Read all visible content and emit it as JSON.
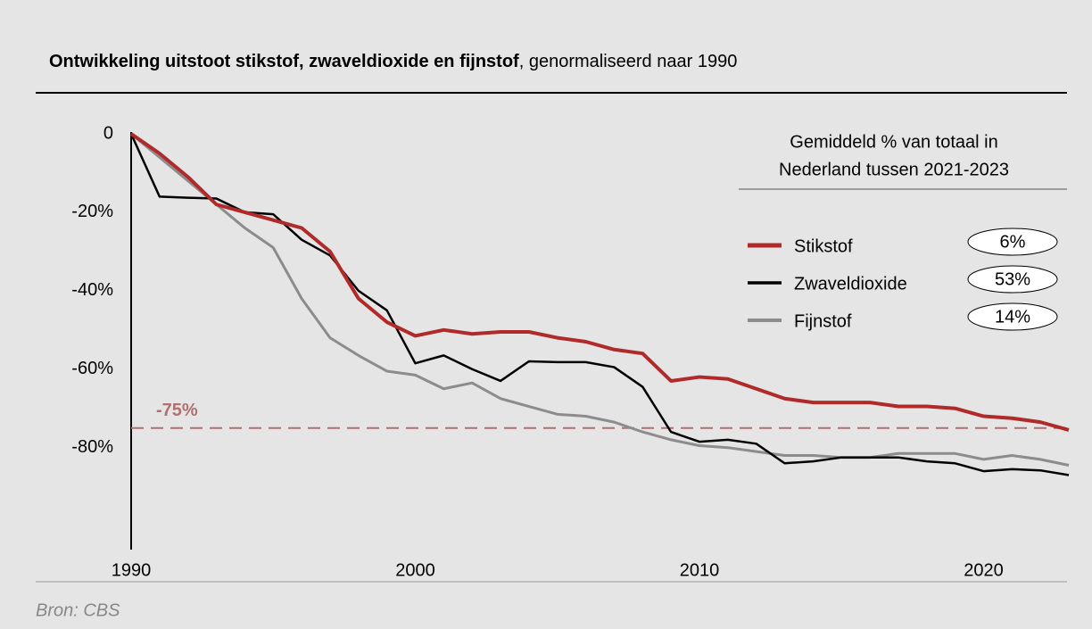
{
  "chart_data": {
    "type": "line",
    "title": "Ontwikkeling uitstoot stikstof, zwaveldioxide en fijnstof",
    "subtitle": ", genormaliseerd naar 1990",
    "source": "Bron: CBS",
    "legend_title": [
      "Gemiddeld % van totaal in",
      "Nederland tussen 2021-2023"
    ],
    "x": [
      1990,
      1991,
      1992,
      1993,
      1994,
      1995,
      1996,
      1997,
      1998,
      1999,
      2000,
      2001,
      2002,
      2003,
      2004,
      2005,
      2006,
      2007,
      2008,
      2009,
      2010,
      2011,
      2012,
      2013,
      2014,
      2015,
      2016,
      2017,
      2018,
      2019,
      2020,
      2021,
      2022,
      2023
    ],
    "series": [
      {
        "name": "Stikstof",
        "color": "#b02a2a",
        "width": 4,
        "share": "6%",
        "values": [
          0,
          -5,
          -11,
          -18,
          -20,
          -22,
          -24,
          -30,
          -42,
          -48,
          -51.5,
          -50,
          -51,
          -50.5,
          -50.5,
          -52,
          -53,
          -55,
          -56,
          -63,
          -62,
          -62.5,
          -65,
          -67.5,
          -68.5,
          -68.5,
          -68.5,
          -69.5,
          -69.5,
          -70,
          -72,
          -72.5,
          -73.5,
          -75.5
        ]
      },
      {
        "name": "Zwaveldioxide",
        "color": "#000000",
        "width": 2.5,
        "share": "53%",
        "values": [
          0,
          -16,
          -16.3,
          -16.5,
          -20,
          -20.5,
          -27,
          -31,
          -40,
          -45,
          -58.5,
          -56.5,
          -60,
          -63,
          -58,
          -58.2,
          -58.2,
          -59.5,
          -64.5,
          -76,
          -78.5,
          -78,
          -79,
          -84,
          -83.5,
          -82.5,
          -82.5,
          -82.5,
          -83.5,
          -84,
          -86,
          -85.5,
          -85.8,
          -87
        ]
      },
      {
        "name": "Fijnstof",
        "color": "#8c8c8c",
        "width": 3,
        "share": "14%",
        "values": [
          0,
          -6,
          -12,
          -18,
          -24,
          -29,
          -42,
          -52,
          -56.5,
          -60.5,
          -61.5,
          -65,
          -63.5,
          -67.5,
          -69.5,
          -71.5,
          -72,
          -73.5,
          -76,
          -78,
          -79.5,
          -80,
          -81,
          -82,
          -82,
          -82.5,
          -82.5,
          -81.5,
          -81.5,
          -81.5,
          -83,
          -82,
          -83,
          -84.5
        ]
      }
    ],
    "reference_line": {
      "value": -75,
      "label": "-75%",
      "color": "#b07070"
    },
    "xlim": [
      1990,
      2023
    ],
    "xticks": [
      1990,
      2000,
      2010,
      2020
    ],
    "ylim": [
      -106,
      0
    ],
    "yticks": [
      0,
      {
        "value": -20,
        "label": "-20%"
      },
      {
        "value": -40,
        "label": "-40%"
      },
      {
        "value": -60,
        "label": "-60%"
      },
      {
        "value": -80,
        "label": "-80%"
      }
    ],
    "grid": false
  }
}
